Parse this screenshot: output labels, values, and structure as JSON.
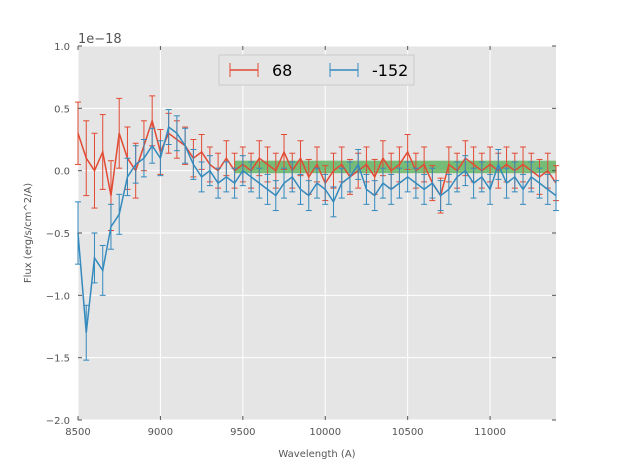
{
  "chart_data": {
    "type": "line",
    "title": "",
    "xlabel": "Wavelength (A)",
    "ylabel": "Flux (erg/s/cm^2/A)",
    "y_offset_label": "1e−18",
    "xlim": [
      8500,
      11400
    ],
    "ylim": [
      -2.0,
      1.0
    ],
    "x_ticks": [
      8500,
      9000,
      9500,
      10000,
      10500,
      11000
    ],
    "x_tick_labels": [
      "8500",
      "9000",
      "9500",
      "10000",
      "10500",
      "11000"
    ],
    "y_ticks": [
      1.0,
      0.5,
      0.0,
      -0.5,
      -1.0,
      -1.5,
      -2.0
    ],
    "y_tick_labels": [
      "1.0",
      "0.5",
      "0.0",
      "−0.5",
      "−1.0",
      "−1.5",
      "−2.0"
    ],
    "grid": true,
    "legend_position": "top-center",
    "background_color": "#e5e5e5",
    "grid_color": "#ffffff",
    "bands": [
      {
        "x_start": 9450,
        "x_end": 11400,
        "y_low": -0.02,
        "y_high": 0.08,
        "color": "#2ca02c",
        "opacity": 0.6
      }
    ],
    "series": [
      {
        "name": "68",
        "color": "#e24a33",
        "x": [
          8500,
          8550,
          8600,
          8650,
          8700,
          8750,
          8800,
          8850,
          8900,
          8950,
          9000,
          9050,
          9100,
          9150,
          9200,
          9250,
          9300,
          9350,
          9400,
          9450,
          9500,
          9550,
          9600,
          9650,
          9700,
          9750,
          9800,
          9850,
          9900,
          9950,
          10000,
          10050,
          10100,
          10150,
          10200,
          10250,
          10300,
          10350,
          10400,
          10450,
          10500,
          10550,
          10600,
          10650,
          10700,
          10750,
          10800,
          10850,
          10900,
          10950,
          11000,
          11050,
          11100,
          11150,
          11200,
          11250,
          11300,
          11350,
          11400
        ],
        "y": [
          0.3,
          0.1,
          0.0,
          0.15,
          -0.2,
          0.3,
          0.1,
          0.0,
          0.2,
          0.4,
          0.15,
          0.3,
          0.25,
          0.2,
          0.1,
          0.15,
          0.05,
          0.0,
          0.1,
          0.0,
          0.05,
          0.0,
          0.1,
          0.05,
          0.0,
          0.15,
          0.0,
          0.1,
          -0.05,
          0.05,
          -0.1,
          0.0,
          0.05,
          -0.05,
          0.0,
          0.05,
          -0.05,
          0.1,
          0.0,
          0.05,
          0.15,
          0.0,
          0.05,
          -0.1,
          -0.2,
          0.05,
          0.0,
          0.1,
          0.05,
          0.0,
          0.05,
          0.0,
          0.05,
          0.0,
          0.05,
          0.0,
          -0.05,
          0.0,
          -0.1
        ],
        "err": [
          0.25,
          0.3,
          0.3,
          0.3,
          0.28,
          0.28,
          0.25,
          0.22,
          0.2,
          0.2,
          0.18,
          0.16,
          0.15,
          0.15,
          0.15,
          0.14,
          0.14,
          0.14,
          0.14,
          0.14,
          0.14,
          0.14,
          0.14,
          0.14,
          0.14,
          0.14,
          0.14,
          0.14,
          0.14,
          0.14,
          0.14,
          0.14,
          0.14,
          0.14,
          0.14,
          0.14,
          0.14,
          0.14,
          0.14,
          0.14,
          0.14,
          0.14,
          0.14,
          0.14,
          0.14,
          0.14,
          0.14,
          0.14,
          0.14,
          0.14,
          0.14,
          0.14,
          0.14,
          0.14,
          0.14,
          0.14,
          0.14,
          0.14,
          0.14
        ]
      },
      {
        "name": "-152",
        "color": "#348abd",
        "x": [
          8500,
          8550,
          8600,
          8650,
          8700,
          8750,
          8800,
          8850,
          8900,
          8950,
          9000,
          9050,
          9100,
          9150,
          9200,
          9250,
          9300,
          9350,
          9400,
          9450,
          9500,
          9550,
          9600,
          9650,
          9700,
          9750,
          9800,
          9850,
          9900,
          9950,
          10000,
          10050,
          10100,
          10150,
          10200,
          10250,
          10300,
          10350,
          10400,
          10450,
          10500,
          10550,
          10600,
          10650,
          10700,
          10750,
          10800,
          10850,
          10900,
          10950,
          11000,
          11050,
          11100,
          11150,
          11200,
          11250,
          11300,
          11350,
          11400
        ],
        "y": [
          -0.5,
          -1.3,
          -0.7,
          -0.8,
          -0.45,
          -0.35,
          -0.05,
          0.05,
          0.1,
          0.2,
          0.1,
          0.35,
          0.3,
          0.2,
          0.05,
          -0.05,
          0.0,
          -0.1,
          -0.05,
          -0.1,
          0.0,
          -0.05,
          -0.1,
          -0.15,
          -0.2,
          -0.1,
          -0.05,
          -0.15,
          -0.2,
          -0.1,
          -0.15,
          -0.25,
          -0.1,
          -0.05,
          0.05,
          -0.15,
          -0.2,
          -0.1,
          -0.15,
          -0.1,
          -0.05,
          -0.1,
          -0.15,
          -0.1,
          -0.2,
          -0.15,
          -0.05,
          0.0,
          -0.1,
          -0.05,
          -0.15,
          0.05,
          -0.1,
          -0.05,
          -0.15,
          -0.05,
          -0.1,
          -0.15,
          -0.2
        ],
        "err": [
          0.25,
          0.22,
          0.2,
          0.2,
          0.18,
          0.16,
          0.15,
          0.15,
          0.15,
          0.14,
          0.14,
          0.14,
          0.14,
          0.14,
          0.12,
          0.12,
          0.12,
          0.12,
          0.12,
          0.12,
          0.12,
          0.12,
          0.12,
          0.12,
          0.12,
          0.12,
          0.12,
          0.12,
          0.12,
          0.12,
          0.12,
          0.12,
          0.12,
          0.12,
          0.12,
          0.12,
          0.12,
          0.12,
          0.12,
          0.12,
          0.12,
          0.12,
          0.12,
          0.12,
          0.12,
          0.12,
          0.12,
          0.12,
          0.12,
          0.12,
          0.12,
          0.12,
          0.12,
          0.12,
          0.12,
          0.12,
          0.12,
          0.12,
          0.12
        ]
      }
    ]
  }
}
